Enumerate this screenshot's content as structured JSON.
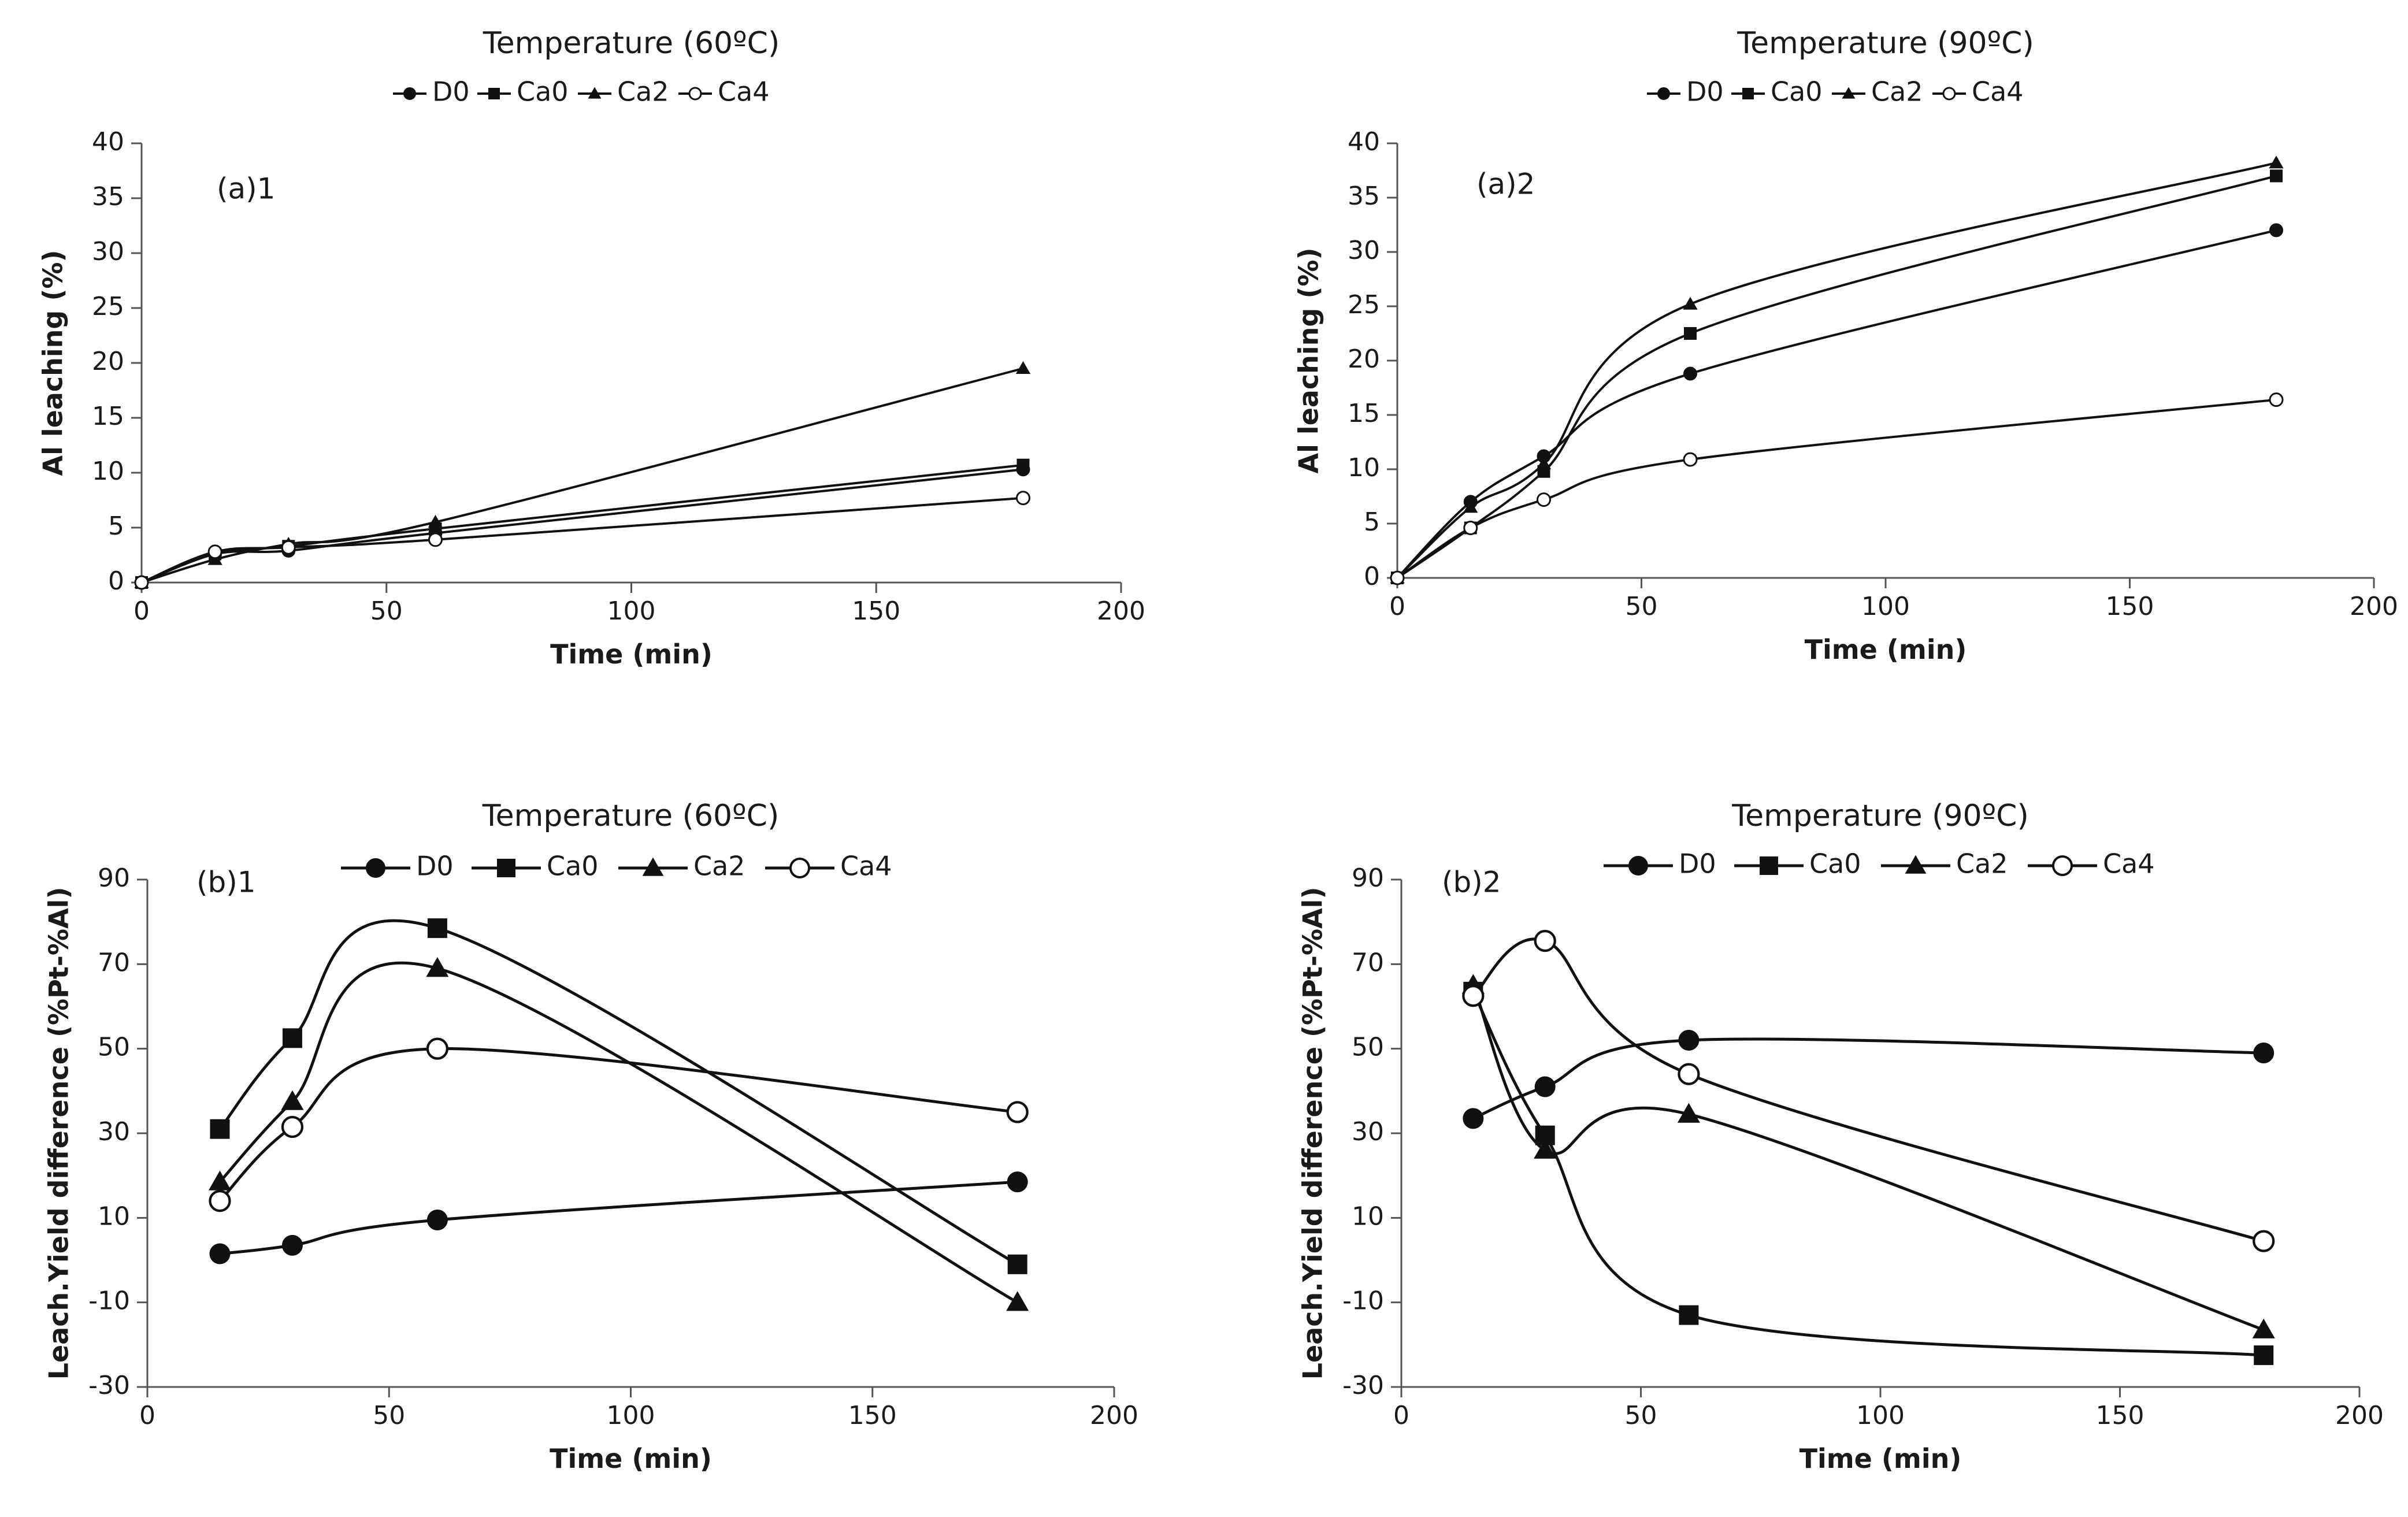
{
  "chart_data": [
    {
      "id": "a1",
      "type": "line",
      "title": "Temperature (60ºC)",
      "panel_label": "(a)1",
      "xlabel": "Time (min)",
      "ylabel": "Al leaching (%)",
      "xlim": [
        0,
        200
      ],
      "ylim": [
        0,
        40
      ],
      "xticks": [
        0,
        50,
        100,
        150,
        200
      ],
      "yticks": [
        0,
        5,
        10,
        15,
        20,
        25,
        30,
        35,
        40
      ],
      "x": [
        0,
        15,
        30,
        60,
        180
      ],
      "legend": [
        "D0",
        "Ca0",
        "Ca2",
        "Ca4"
      ],
      "series": [
        {
          "name": "D0",
          "marker": "circle",
          "values": [
            0,
            2.6,
            2.9,
            4.5,
            10.3
          ]
        },
        {
          "name": "Ca0",
          "marker": "square",
          "values": [
            0,
            2.6,
            3.3,
            4.9,
            10.7
          ]
        },
        {
          "name": "Ca2",
          "marker": "triangle",
          "values": [
            0,
            2.1,
            3.5,
            5.5,
            19.5
          ]
        },
        {
          "name": "Ca4",
          "marker": "open-circle",
          "values": [
            0,
            2.8,
            3.2,
            3.9,
            7.7
          ]
        }
      ]
    },
    {
      "id": "a2",
      "type": "line",
      "title": "Temperature (90ºC)",
      "panel_label": "(a)2",
      "xlabel": "Time (min)",
      "ylabel": "Al leaching (%)",
      "xlim": [
        0,
        200
      ],
      "ylim": [
        0,
        40
      ],
      "xticks": [
        0,
        50,
        100,
        150,
        200
      ],
      "yticks": [
        0,
        5,
        10,
        15,
        20,
        25,
        30,
        35,
        40
      ],
      "x": [
        0,
        15,
        30,
        60,
        180
      ],
      "legend": [
        "D0",
        "Ca0",
        "Ca2",
        "Ca4"
      ],
      "series": [
        {
          "name": "D0",
          "marker": "circle",
          "values": [
            0,
            7.0,
            11.2,
            18.8,
            32.0
          ]
        },
        {
          "name": "Ca0",
          "marker": "square",
          "values": [
            0,
            4.6,
            9.8,
            22.5,
            37.0
          ]
        },
        {
          "name": "Ca2",
          "marker": "triangle",
          "values": [
            0,
            6.5,
            10.5,
            25.2,
            38.2
          ]
        },
        {
          "name": "Ca4",
          "marker": "open-circle",
          "values": [
            0,
            4.6,
            7.2,
            10.9,
            16.4
          ]
        }
      ]
    },
    {
      "id": "b1",
      "type": "line",
      "title": "Temperature (60ºC)",
      "panel_label": "(b)1",
      "xlabel": "Time (min)",
      "ylabel": "Leach.Yield difference (%Pt-%Al)",
      "xlim": [
        0,
        200
      ],
      "ylim": [
        -30,
        90
      ],
      "xticks": [
        0,
        50,
        100,
        150,
        200
      ],
      "yticks": [
        -30,
        -10,
        10,
        30,
        50,
        70,
        90
      ],
      "x": [
        15,
        30,
        60,
        180
      ],
      "legend": [
        "D0",
        "Ca0",
        "Ca2",
        "Ca4"
      ],
      "series": [
        {
          "name": "D0",
          "marker": "circle",
          "values": [
            1.5,
            3.5,
            9.5,
            18.5
          ]
        },
        {
          "name": "Ca0",
          "marker": "square",
          "values": [
            31,
            52.5,
            78.5,
            -1
          ]
        },
        {
          "name": "Ca2",
          "marker": "triangle",
          "values": [
            18.5,
            37.5,
            69,
            -10
          ]
        },
        {
          "name": "Ca4",
          "marker": "open-circle",
          "values": [
            14,
            31.5,
            50,
            35
          ]
        }
      ]
    },
    {
      "id": "b2",
      "type": "line",
      "title": "Temperature (90ºC)",
      "panel_label": "(b)2",
      "xlabel": "Time (min)",
      "ylabel": "Leach.Yield difference (%Pt-%Al)",
      "xlim": [
        0,
        200
      ],
      "ylim": [
        -30,
        90
      ],
      "xticks": [
        0,
        50,
        100,
        150,
        200
      ],
      "yticks": [
        -30,
        -10,
        10,
        30,
        50,
        70,
        90
      ],
      "x": [
        15,
        30,
        60,
        180
      ],
      "legend": [
        "D0",
        "Ca0",
        "Ca2",
        "Ca4"
      ],
      "series": [
        {
          "name": "D0",
          "marker": "circle",
          "values": [
            33.5,
            41,
            52,
            49
          ]
        },
        {
          "name": "Ca0",
          "marker": "square",
          "values": [
            63.5,
            29.5,
            -13,
            -22.5
          ]
        },
        {
          "name": "Ca2",
          "marker": "triangle",
          "values": [
            65,
            26,
            34.5,
            -16.5
          ]
        },
        {
          "name": "Ca4",
          "marker": "open-circle",
          "values": [
            62.5,
            75.5,
            44,
            4.5
          ]
        }
      ]
    }
  ],
  "colors": {
    "line": "#111111",
    "axis": "#555555",
    "background": "#ffffff"
  }
}
